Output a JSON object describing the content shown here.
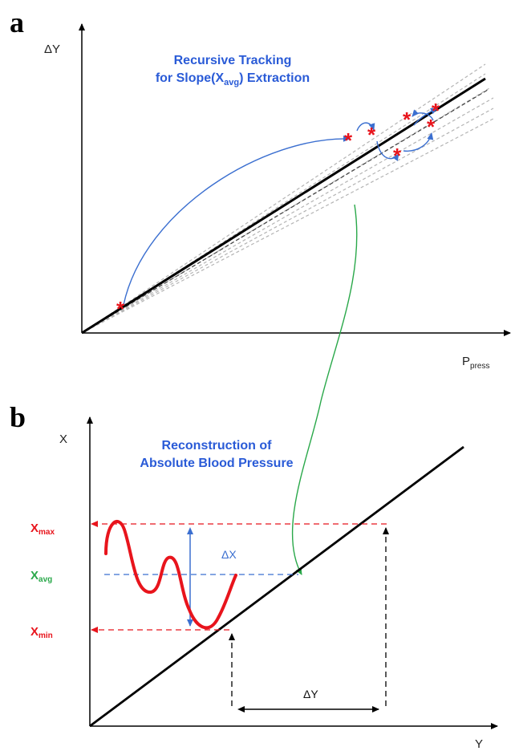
{
  "panel_a": {
    "letter": "a",
    "y_axis": "ΔY",
    "x_axis": {
      "main": "P",
      "sub": "press"
    },
    "title_line1": "Recursive Tracking",
    "title_line2": {
      "pre": "for Slope(X",
      "sub": "avg",
      "post": ") Extraction"
    },
    "marker_symbol": "*",
    "colors": {
      "fit_line": "#000000",
      "guide_lines": "#b0b0b0",
      "arrows": "#3b6fd0",
      "markers": "#e8141c",
      "title": "#2a5bd7"
    }
  },
  "panel_b": {
    "letter": "b",
    "y_axis": "X",
    "x_axis": "Y",
    "title_line1": "Reconstruction of",
    "title_line2": "Absolute Blood Pressure",
    "levels": [
      {
        "main": "X",
        "sub": "max",
        "color": "#e8141c"
      },
      {
        "main": "X",
        "sub": "avg",
        "color": "#2aa84a"
      },
      {
        "main": "X",
        "sub": "min",
        "color": "#e8141c"
      }
    ],
    "delta_x": "ΔX",
    "delta_y": "ΔY",
    "colors": {
      "waveform": "#e8141c",
      "avg_line": "#3b6fd0",
      "connector": "#2aa84a"
    }
  }
}
